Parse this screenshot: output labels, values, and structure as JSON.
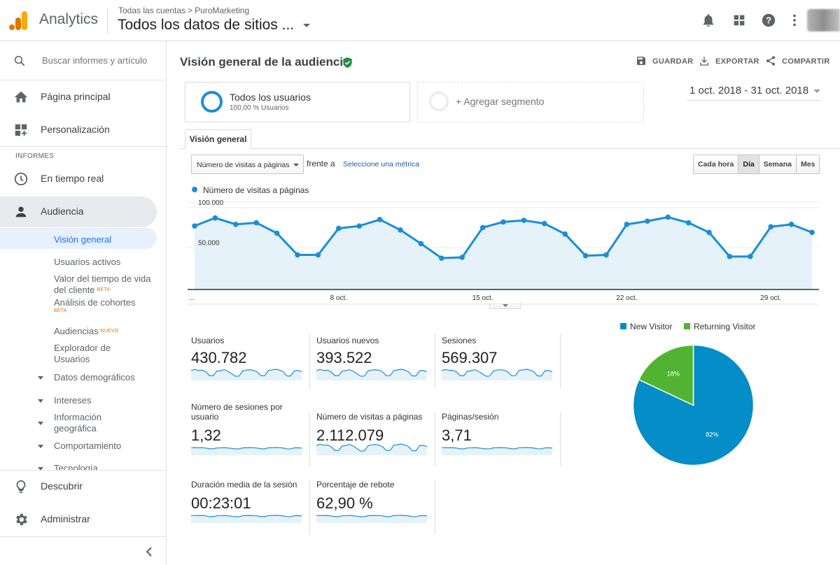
{
  "app": {
    "name": "Analytics"
  },
  "breadcrumb": {
    "parent": "Todas las cuentas",
    "separator": ">",
    "account": "PuroMarketing"
  },
  "property_view": "Todos los datos de sitios ...",
  "sidebar": {
    "search_placeholder": "Buscar informes y artículos",
    "items_top": [
      {
        "label": "Página principal",
        "icon": "home-icon"
      },
      {
        "label": "Personalización",
        "icon": "dashboard-icon"
      }
    ],
    "section_label": "INFORMES",
    "items_reports": [
      {
        "label": "En tiempo real",
        "icon": "clock-icon"
      },
      {
        "label": "Audiencia",
        "icon": "person-icon"
      }
    ],
    "audience_sub": {
      "overview": "Visión general",
      "active_users": "Usuarios activos",
      "lifetime_value": "Valor del tiempo de vida del cliente",
      "lifetime_badge": "BETA",
      "cohort": "Análisis de cohortes",
      "cohort_badge": "BETA",
      "audiences": "Audiencias",
      "audiences_badge": "NUEVO",
      "user_explorer": "Explorador de Usuarios",
      "demographics": "Datos demográficos",
      "interests": "Intereses",
      "geo": "Información geográfica",
      "behavior": "Comportamiento",
      "technology": "Tecnología"
    },
    "items_bottom": [
      {
        "label": "Descubrir",
        "icon": "lightbulb-icon"
      },
      {
        "label": "Administrar",
        "icon": "gear-icon"
      }
    ]
  },
  "report": {
    "title": "Visión general de la audiencia",
    "actions": {
      "save": "GUARDAR",
      "export": "EXPORTAR",
      "share": "COMPARTIR"
    },
    "segment": {
      "name": "Todos los usuarios",
      "sub": "100,00 % Usuarios"
    },
    "add_segment": "+ Agregar segmento",
    "date_range": "1 oct. 2018 - 31 oct. 2018",
    "tab": "Visión general",
    "metric_select": "Número de visitas a páginas",
    "versus": "frente a",
    "select_metric": "Seleccione una métrica",
    "granularity": [
      "Cada hora",
      "Día",
      "Semana",
      "Mes"
    ],
    "granularity_selected": "Día"
  },
  "chart_data": [
    {
      "type": "area",
      "series": [
        {
          "name": "Número de visitas a páginas",
          "values": [
            79000,
            89000,
            81000,
            83000,
            70000,
            43000,
            43000,
            76000,
            79000,
            87000,
            74000,
            57000,
            39000,
            40000,
            77000,
            84000,
            86000,
            82000,
            69000,
            42000,
            43000,
            81000,
            85000,
            90000,
            83000,
            71000,
            41000,
            41000,
            78000,
            81000,
            71000
          ]
        }
      ],
      "x": [
        "1 oct.",
        "2 oct.",
        "3 oct.",
        "4 oct.",
        "5 oct.",
        "6 oct.",
        "7 oct.",
        "8 oct.",
        "9 oct.",
        "10 oct.",
        "11 oct.",
        "12 oct.",
        "13 oct.",
        "14 oct.",
        "15 oct.",
        "16 oct.",
        "17 oct.",
        "18 oct.",
        "19 oct.",
        "20 oct.",
        "21 oct.",
        "22 oct.",
        "23 oct.",
        "24 oct.",
        "25 oct.",
        "26 oct.",
        "27 oct.",
        "28 oct.",
        "29 oct.",
        "30 oct.",
        "31 oct."
      ],
      "x_tick_labels": [
        "...",
        "8 oct.",
        "15 oct.",
        "22 oct.",
        "29 oct."
      ],
      "y_tick_labels": [
        "100.000",
        "50.000"
      ],
      "ylim": [
        0,
        100000
      ],
      "grid": true,
      "legend": "top-left",
      "color": "#1a8ed9",
      "fill": "#e5f2fa"
    },
    {
      "type": "pie",
      "categories": [
        "New Visitor",
        "Returning Visitor"
      ],
      "values": [
        82,
        18
      ],
      "labels": [
        "82%",
        "18%"
      ],
      "colors": [
        "#058dc7",
        "#50b432"
      ],
      "legend": "top"
    }
  ],
  "scorecards": [
    {
      "label": "Usuarios",
      "value": "430.782"
    },
    {
      "label": "Usuarios nuevos",
      "value": "393.522"
    },
    {
      "label": "Sesiones",
      "value": "569.307"
    },
    {
      "label": "Número de sesiones por usuario",
      "value": "1,32"
    },
    {
      "label": "Número de visitas a páginas",
      "value": "2.112.079"
    },
    {
      "label": "Páginas/sesión",
      "value": "3,71"
    },
    {
      "label": "Duración media de la sesión",
      "value": "00:23:01"
    },
    {
      "label": "Porcentaje de rebote",
      "value": "62,90 %"
    }
  ]
}
